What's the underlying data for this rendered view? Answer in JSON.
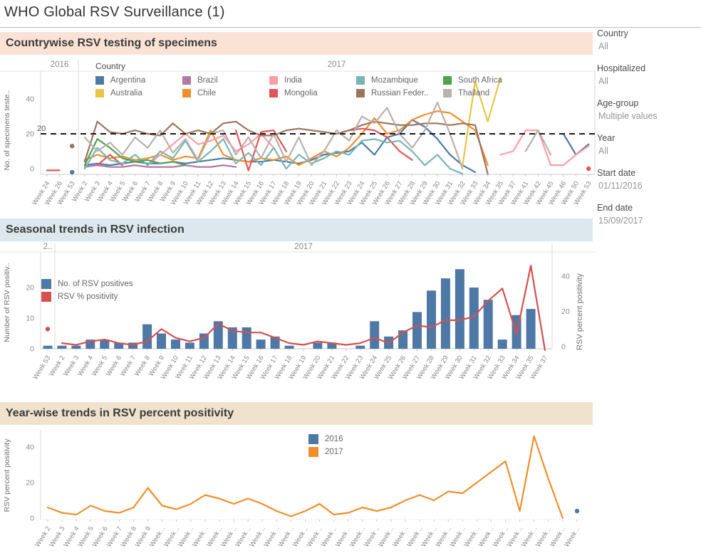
{
  "title": "WHO Global RSV Surveillance (1)",
  "sections": [
    {
      "header": "Countrywise RSV testing of specimens"
    },
    {
      "header": "Seasonal trends in RSV infection"
    },
    {
      "header": "Year-wise trends in RSV percent positivity"
    }
  ],
  "sidebar": {
    "filters": [
      {
        "label": "Country",
        "value": "All"
      },
      {
        "label": "Hospitalized",
        "value": "All"
      },
      {
        "label": "Age-group",
        "value": "Multiple values"
      },
      {
        "label": "Year",
        "value": "All"
      },
      {
        "label": "Start date",
        "value": "01/11/2016"
      },
      {
        "label": "End date",
        "value": "15/09/2017"
      }
    ]
  },
  "chart_data": [
    {
      "type": "line",
      "title": "Countrywise RSV testing of specimens",
      "ylabel": "No. of specimens teste..",
      "yticks": [
        0,
        20,
        40
      ],
      "ylim": [
        -4,
        55
      ],
      "grid": false,
      "legend_position": "top",
      "legend_title": "Country",
      "year_headers": [
        {
          "label": "2016",
          "ticks": 3
        },
        {
          "label": "2017",
          "ticks": 41
        }
      ],
      "ref_line": {
        "value": 20,
        "label": "20"
      },
      "categories": [
        "Week 24",
        "Week 26",
        "Week 53",
        "Week 2",
        "Week 3",
        "Week 4",
        "Week 5",
        "Week 6",
        "Week 7",
        "Week 8",
        "Week 9",
        "Week 10",
        "Week 11",
        "Week 12",
        "Week 13",
        "Week 14",
        "Week 15",
        "Week 16",
        "Week 17",
        "Week 18",
        "Week 19",
        "Week 20",
        "Week 21",
        "Week 22",
        "Week 23",
        "Week 24",
        "Week 25",
        "Week 26",
        "Week 27",
        "Week 28",
        "Week 29",
        "Week 30",
        "Week 31",
        "Week 32",
        "Week 33",
        "Week 34",
        "Week 35",
        "Week 37",
        "Week 41",
        "Week 42",
        "Week 45",
        "Week 46",
        "Week 50",
        "Week 53"
      ],
      "split_after_index": 2,
      "series": [
        {
          "name": "Argentina",
          "color": "#4e79a7",
          "values": [
            null,
            null,
            -2,
            2,
            3,
            2,
            3,
            4,
            3,
            3,
            4,
            3,
            4,
            5,
            6,
            5,
            4,
            4,
            5,
            4,
            3,
            5,
            8,
            9,
            10,
            15,
            8,
            18,
            20,
            28,
            24,
            17,
            8,
            2,
            -2,
            null,
            null,
            null,
            null,
            null,
            null,
            20,
            8,
            14
          ]
        },
        {
          "name": "Australia",
          "color": "#e7c64a",
          "values": [
            null,
            null,
            null,
            null,
            null,
            null,
            null,
            null,
            null,
            null,
            null,
            null,
            null,
            null,
            null,
            null,
            null,
            null,
            null,
            null,
            null,
            null,
            null,
            null,
            null,
            null,
            null,
            null,
            null,
            null,
            null,
            null,
            null,
            2,
            50,
            27,
            52,
            null,
            null,
            null,
            null,
            null,
            null,
            null
          ]
        },
        {
          "name": "Brazil",
          "color": "#b07aa1",
          "values": [
            null,
            null,
            null,
            1,
            2,
            1,
            1,
            2,
            1,
            1,
            1,
            2,
            1,
            1,
            2,
            1,
            null,
            null,
            null,
            null,
            null,
            null,
            null,
            null,
            null,
            null,
            null,
            null,
            null,
            null,
            null,
            null,
            null,
            null,
            null,
            null,
            null,
            null,
            null,
            null,
            null,
            null,
            null,
            null
          ]
        },
        {
          "name": "Chile",
          "color": "#f28e2b",
          "values": [
            null,
            null,
            null,
            5,
            8,
            6,
            7,
            5,
            6,
            8,
            5,
            7,
            6,
            22,
            8,
            5,
            4,
            6,
            5,
            7,
            2,
            6,
            10,
            7,
            12,
            20,
            29,
            20,
            22,
            28,
            31,
            33,
            32,
            27,
            22,
            2,
            null,
            null,
            null,
            null,
            null,
            null,
            null,
            null
          ]
        },
        {
          "name": "India",
          "color": "#ff9da7",
          "values": [
            null,
            null,
            null,
            null,
            null,
            null,
            null,
            null,
            2,
            8,
            14,
            20,
            14,
            16,
            19,
            10,
            14,
            20,
            12,
            null,
            null,
            null,
            null,
            null,
            null,
            null,
            null,
            null,
            null,
            null,
            null,
            null,
            null,
            null,
            null,
            null,
            8,
            10,
            22,
            22,
            2,
            2,
            8,
            13
          ]
        },
        {
          "name": "Mongolia",
          "color": "#e15759",
          "values": [
            -1,
            -1,
            null,
            null,
            2,
            8,
            2,
            null,
            null,
            null,
            null,
            null,
            null,
            null,
            null,
            22,
            -1,
            21,
            22,
            10,
            null,
            null,
            null,
            20,
            22,
            23,
            22,
            18,
            10,
            5,
            null,
            null,
            null,
            null,
            null,
            null,
            null,
            null,
            null,
            null,
            null,
            null,
            null,
            0
          ]
        },
        {
          "name": "Mozambique",
          "color": "#76b7b2",
          "values": [
            null,
            null,
            null,
            0,
            12,
            5,
            3,
            8,
            2,
            10,
            6,
            16,
            4,
            10,
            17,
            3,
            9,
            2,
            12,
            0,
            8,
            3,
            6,
            10,
            8,
            16,
            17,
            15,
            16,
            10,
            2,
            8,
            0,
            -3,
            null,
            null,
            null,
            null,
            null,
            null,
            null,
            null,
            null,
            null
          ]
        },
        {
          "name": "Russian Feder..",
          "color": "#9c755f",
          "values": [
            null,
            null,
            13,
            4,
            27,
            21,
            20,
            22,
            20,
            19,
            26,
            20,
            22,
            20,
            26,
            27,
            22,
            19,
            19,
            22,
            23,
            22,
            21,
            20,
            22,
            25,
            27,
            26,
            25,
            25,
            26,
            26,
            25,
            26,
            25,
            -3,
            null,
            null,
            null,
            null,
            null,
            null,
            null,
            null
          ]
        },
        {
          "name": "South Africa",
          "color": "#4ea24e",
          "values": [
            null,
            null,
            null,
            2,
            17,
            12,
            6,
            4,
            5,
            3,
            4,
            2,
            null,
            null,
            null,
            null,
            null,
            null,
            null,
            null,
            null,
            null,
            null,
            null,
            null,
            null,
            null,
            null,
            null,
            null,
            null,
            null,
            null,
            null,
            null,
            null,
            null,
            null,
            null,
            null,
            null,
            null,
            null,
            null
          ]
        },
        {
          "name": "Thailand",
          "color": "#bab0ac",
          "values": [
            null,
            null,
            null,
            18,
            10,
            15,
            8,
            18,
            12,
            22,
            9,
            17,
            5,
            20,
            22,
            8,
            18,
            6,
            20,
            4,
            18,
            2,
            10,
            22,
            16,
            30,
            26,
            35,
            20,
            12,
            22,
            38,
            20,
            0,
            null,
            null,
            null,
            null,
            10,
            22,
            8,
            null,
            null,
            null
          ]
        }
      ]
    },
    {
      "type": "bar+line",
      "title": "Seasonal trends in RSV infection",
      "ylabel_left": "Number of RSV positiv..",
      "ylabel_right": "RSV percent positivity",
      "yticks_left": [
        0,
        10,
        20
      ],
      "yticks_right": [
        0,
        20,
        40
      ],
      "ylim_left": [
        0,
        28
      ],
      "ylim_right": [
        -3,
        50
      ],
      "grid": false,
      "legend_position": "top-left",
      "year_headers": [
        {
          "label": "2..",
          "ticks": 1
        },
        {
          "label": "2017",
          "ticks": 35
        }
      ],
      "categories": [
        "Week 53",
        "Week 2",
        "Week 3",
        "Week 4",
        "Week 5",
        "Week 6",
        "Week 7",
        "Week 8",
        "Week 9",
        "Week 10",
        "Week 11",
        "Week 12",
        "Week 13",
        "Week 14",
        "Week 15",
        "Week 16",
        "Week 17",
        "Week 18",
        "Week 19",
        "Week 20",
        "Week 21",
        "Week 22",
        "Week 23",
        "Week 24",
        "Week 25",
        "Week 26",
        "Week 27",
        "Week 28",
        "Week 29",
        "Week 30",
        "Week 31",
        "Week 32",
        "Week 33",
        "Week 34",
        "Week 35",
        "Week 37"
      ],
      "split_after_index": 0,
      "series": [
        {
          "name": "No. of RSV positives",
          "mark": "bar",
          "axis": "left",
          "color": "#4e79a7",
          "values": [
            1,
            1,
            1,
            3,
            3,
            2,
            2,
            8,
            5,
            3,
            2,
            5,
            9,
            7,
            7,
            3,
            4,
            1,
            0,
            2,
            2,
            0,
            1,
            9,
            4,
            6,
            12,
            19,
            23,
            26,
            20,
            16,
            3,
            11,
            13,
            0
          ]
        },
        {
          "name": "RSV % positivity",
          "mark": "line",
          "axis": "right",
          "color": "#d5504e",
          "values": [
            10,
            2,
            1,
            3,
            4,
            2,
            1,
            3,
            10,
            5,
            3,
            5,
            13,
            9,
            8,
            8,
            5,
            2,
            1,
            3,
            2,
            1,
            2,
            5,
            2,
            8,
            12,
            11,
            15,
            15,
            17,
            26,
            33,
            7,
            46,
            -2
          ]
        }
      ]
    },
    {
      "type": "line",
      "title": "Year-wise trends in RSV percent positivity",
      "ylabel": "RSV percent positivity",
      "yticks": [
        0,
        20,
        40
      ],
      "ylim": [
        0,
        48
      ],
      "grid": false,
      "legend_position": "top-center",
      "categories": [
        "Week 2",
        "Week 3",
        "Week 4",
        "Week 5",
        "Week 6",
        "Week 7",
        "Week 8",
        "Week 9",
        "Week ..",
        "Week ..",
        "Week ..",
        "Week ..",
        "Week ..",
        "Week ..",
        "Week ..",
        "Week ..",
        "Week ..",
        "Week ..",
        "Week ..",
        "Week ..",
        "Week ..",
        "Week ..",
        "Week ..",
        "Week ..",
        "Week ..",
        "Week ..",
        "Week ..",
        "Week ..",
        "Week ..",
        "Week ..",
        "Week ..",
        "Week ..",
        "Week ..",
        "Week ..",
        "Week ..",
        "Week ..",
        "Week ..",
        "Week .."
      ],
      "series": [
        {
          "name": "2016",
          "color": "#4e79a7",
          "values": [
            null,
            null,
            null,
            null,
            null,
            null,
            null,
            null,
            null,
            null,
            null,
            null,
            null,
            null,
            null,
            null,
            null,
            null,
            null,
            null,
            null,
            null,
            null,
            null,
            null,
            null,
            null,
            null,
            null,
            null,
            null,
            null,
            null,
            null,
            null,
            null,
            null,
            4
          ]
        },
        {
          "name": "2017",
          "color": "#f28e2b",
          "values": [
            6,
            3,
            2,
            7,
            4,
            3,
            6,
            17,
            7,
            5,
            8,
            13,
            11,
            8,
            11,
            8,
            4,
            1,
            4,
            8,
            2,
            3,
            6,
            4,
            6,
            10,
            13,
            10,
            15,
            14,
            20,
            26,
            32,
            4,
            46,
            22,
            0,
            null
          ]
        }
      ]
    }
  ]
}
